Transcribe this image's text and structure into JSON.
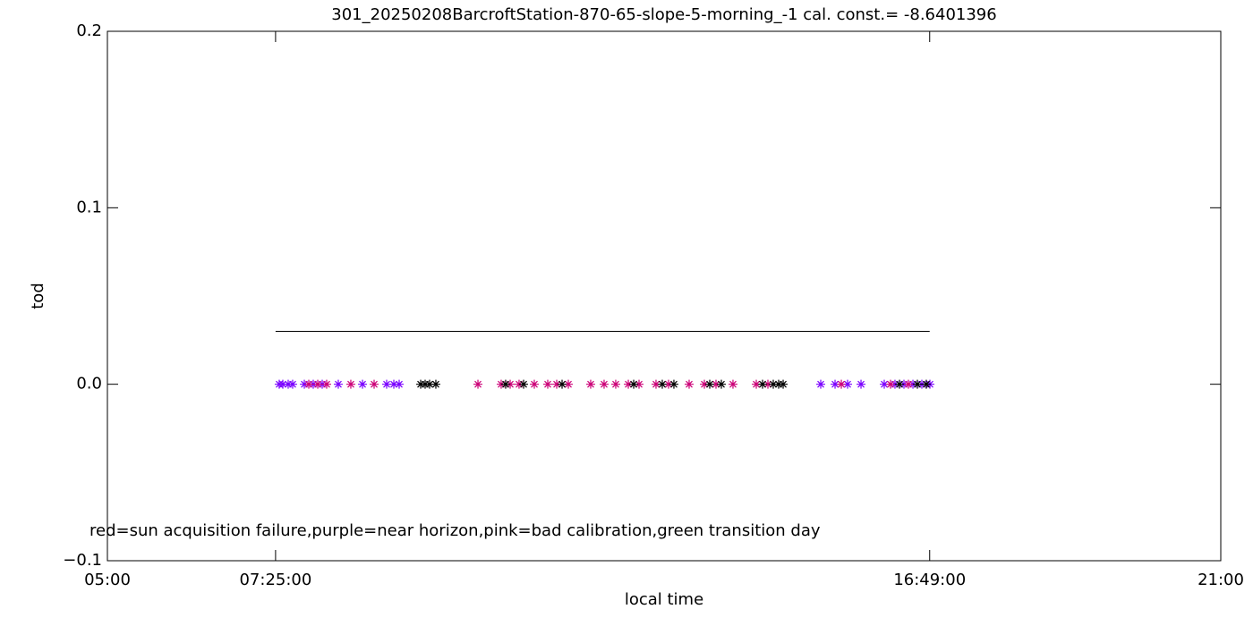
{
  "chart_data": {
    "type": "scatter",
    "title": "301_20250208BarcroftStation-870-65-slope-5-morning_-1 cal. const.= -8.6401396",
    "xlabel": "local time",
    "ylabel": "tod",
    "annotation": "red=sun acquisition failure,purple=near horizon,pink=bad calibration,green transition day",
    "xlim": [
      5,
      21
    ],
    "xticks": [
      {
        "value": 5,
        "label": "05:00"
      },
      {
        "value": 7.4167,
        "label": "07:25:00"
      },
      {
        "value": 16.8167,
        "label": "16:49:00"
      },
      {
        "value": 21,
        "label": "21:00"
      }
    ],
    "ylim": [
      -0.1,
      0.2
    ],
    "yticks": [
      {
        "value": -0.1,
        "label": "−0.1"
      },
      {
        "value": 0,
        "label": "0.0"
      },
      0.1,
      0.2
    ],
    "series": [
      {
        "type": "line",
        "color": "#000000",
        "x": [
          7.4167,
          16.8167
        ],
        "values": [
          0.03,
          0.03
        ]
      },
      {
        "type": "scatter",
        "color": "#7a00ff",
        "x": [
          7.469,
          7.521,
          7.598,
          7.662,
          7.83,
          7.958,
          8.087,
          8.318,
          8.666,
          9.013,
          9.116,
          9.193,
          15.251,
          15.457,
          15.637,
          15.83,
          16.164,
          16.318,
          16.447,
          16.576,
          16.704,
          16.82
        ],
        "values": [
          0,
          0,
          0,
          0,
          0,
          0,
          0,
          0,
          0,
          0,
          0,
          0,
          0,
          0,
          0,
          0,
          0,
          0,
          0,
          0,
          0,
          0
        ]
      },
      {
        "type": "scatter",
        "color": "#cc0077",
        "x": [
          7.894,
          8.023,
          8.151,
          8.498,
          8.833,
          10.325,
          10.659,
          10.788,
          10.916,
          11.135,
          11.328,
          11.457,
          11.624,
          11.945,
          12.138,
          12.305,
          12.486,
          12.64,
          12.884,
          13.064,
          13.36,
          13.579,
          13.746,
          13.99,
          14.325,
          14.492,
          15.547,
          16.254,
          16.511
        ],
        "values": [
          0,
          0,
          0,
          0,
          0,
          0,
          0,
          0,
          0,
          0,
          0,
          0,
          0,
          0,
          0,
          0,
          0,
          0,
          0,
          0,
          0,
          0,
          0,
          0,
          0,
          0,
          0,
          0,
          0
        ]
      },
      {
        "type": "scatter",
        "color": "#000000",
        "x": [
          9.502,
          9.566,
          9.63,
          9.72,
          10.723,
          10.981,
          11.534,
          12.563,
          12.974,
          13.141,
          13.656,
          13.823,
          14.415,
          14.569,
          14.646,
          14.711,
          16.383,
          16.64,
          16.768
        ],
        "values": [
          0,
          0,
          0,
          0,
          0,
          0,
          0,
          0,
          0,
          0,
          0,
          0,
          0,
          0,
          0,
          0,
          0,
          0,
          0
        ]
      }
    ]
  }
}
